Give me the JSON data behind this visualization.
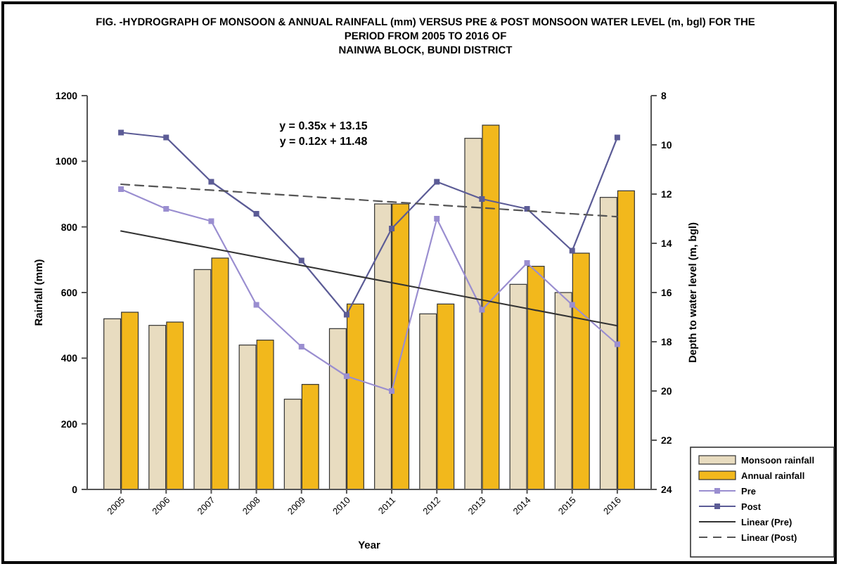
{
  "chart_data": {
    "type": "bar",
    "title": "FIG. -HYDROGRAPH OF MONSOON & ANNUAL RAINFALL (mm) VERSUS PRE & POST MONSOON WATER LEVEL (m, bgl) FOR THE PERIOD FROM 2005 TO 2016 OF",
    "subtitle": "NAINWA BLOCK, BUNDI DISTRICT",
    "xlabel": "Year",
    "ylabel": "Rainfall (mm)",
    "y2label": "Depth to water level (m, bgl)",
    "categories": [
      "2005",
      "2006",
      "2007",
      "2008",
      "2009",
      "2010",
      "2011",
      "2012",
      "2013",
      "2014",
      "2015",
      "2016"
    ],
    "series": [
      {
        "name": "Monsoon rainfall",
        "color": "#e8dcc0",
        "values": [
          520,
          500,
          670,
          440,
          275,
          490,
          870,
          535,
          1070,
          625,
          600,
          890
        ]
      },
      {
        "name": "Annual rainfall",
        "color": "#f2b81c",
        "values": [
          540,
          510,
          705,
          455,
          320,
          565,
          870,
          565,
          1110,
          680,
          720,
          910
        ]
      },
      {
        "name": "Pre",
        "type": "line",
        "axis": "y2",
        "color": "#9a8ed0",
        "marker": "square",
        "line_style": "solid",
        "values": [
          11.8,
          12.6,
          13.1,
          16.5,
          18.2,
          19.4,
          20.0,
          13.0,
          16.7,
          14.8,
          16.5,
          18.1
        ]
      },
      {
        "name": "Post",
        "type": "line",
        "axis": "y2",
        "color": "#5c5c96",
        "marker": "square",
        "line_style": "solid",
        "values": [
          9.5,
          9.7,
          11.5,
          12.8,
          14.7,
          16.9,
          13.4,
          11.5,
          12.2,
          12.6,
          14.3,
          9.7
        ]
      },
      {
        "name": "Linear (Pre)",
        "type": "line",
        "axis": "y2",
        "color": "#333333",
        "marker": "none",
        "line_style": "solid",
        "values": [
          13.5,
          13.85,
          14.2,
          14.55,
          14.9,
          15.25,
          15.6,
          15.95,
          16.3,
          16.65,
          17.0,
          17.35
        ]
      },
      {
        "name": "Linear (Post)",
        "type": "line",
        "axis": "y2",
        "color": "#555555",
        "marker": "none",
        "line_style": "dashed",
        "values": [
          11.6,
          11.72,
          11.84,
          11.96,
          12.08,
          12.2,
          12.32,
          12.44,
          12.56,
          12.68,
          12.8,
          12.92
        ]
      }
    ],
    "ylim": [
      0,
      1200
    ],
    "yticks": [
      0,
      200,
      400,
      600,
      800,
      1000,
      1200
    ],
    "y2lim": [
      24,
      8
    ],
    "y2ticks": [
      8,
      10,
      12,
      14,
      16,
      18,
      20,
      22,
      24
    ],
    "grid": false,
    "legend": "bottom right",
    "annotations": [
      "y = 0.35x + 13.15",
      "y = 0.12x + 11.48"
    ]
  }
}
